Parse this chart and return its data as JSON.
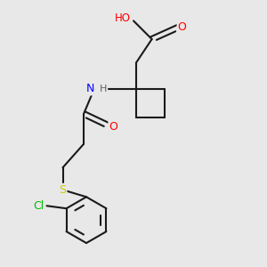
{
  "background_color": "#e8e8e8",
  "bond_color": "#1a1a1a",
  "atom_colors": {
    "O": "#ff0000",
    "N": "#0000ff",
    "S": "#cccc00",
    "Cl": "#00bb00",
    "C": "#1a1a1a",
    "H": "#606060"
  },
  "figsize": [
    3.0,
    3.0
  ],
  "dpi": 100
}
